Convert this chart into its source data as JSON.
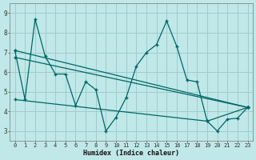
{
  "xlabel": "Humidex (Indice chaleur)",
  "bg_color": "#c0e8e8",
  "grid_color": "#a0cccc",
  "line_color": "#006666",
  "xlim": [
    -0.5,
    23.5
  ],
  "ylim": [
    2.5,
    9.5
  ],
  "xticks": [
    0,
    1,
    2,
    3,
    4,
    5,
    6,
    7,
    8,
    9,
    10,
    11,
    12,
    13,
    14,
    15,
    16,
    17,
    18,
    19,
    20,
    21,
    22,
    23
  ],
  "yticks": [
    3,
    4,
    5,
    6,
    7,
    8,
    9
  ],
  "line1_x": [
    0,
    1,
    2,
    3,
    4,
    5,
    6,
    7,
    8,
    9,
    10,
    11,
    12,
    13,
    14,
    15,
    16,
    17,
    18,
    19,
    20,
    21,
    22,
    23
  ],
  "line1_y": [
    7.1,
    4.6,
    8.7,
    6.8,
    5.9,
    5.9,
    4.3,
    5.5,
    5.1,
    3.0,
    3.7,
    4.7,
    6.3,
    7.0,
    7.4,
    8.6,
    7.3,
    5.6,
    5.5,
    3.5,
    3.0,
    3.6,
    3.65,
    4.2
  ],
  "line2_x": [
    0,
    23
  ],
  "line2_y": [
    7.1,
    4.2
  ],
  "line3_x": [
    0,
    23
  ],
  "line3_y": [
    6.75,
    4.2
  ],
  "line4_x": [
    0,
    19,
    23
  ],
  "line4_y": [
    4.6,
    3.5,
    4.2
  ]
}
